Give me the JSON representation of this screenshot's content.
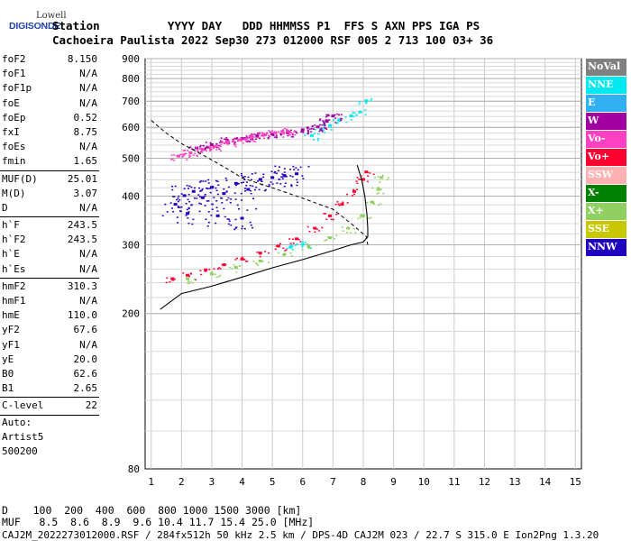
{
  "logo": {
    "line1": "Lowell",
    "line2": "DIGISONDE"
  },
  "header": {
    "row1": "Station          YYYY DAY   DDD HHMMSS P1  FFS S AXN PPS IGA PS",
    "row2": "Cachoeira Paulista 2022 Sep30 273 012000 RSF 005 2 713 100 03+ 36"
  },
  "params": {
    "group1": [
      {
        "name": "foF2",
        "value": "8.150"
      },
      {
        "name": "foF1",
        "value": "N/A"
      },
      {
        "name": "foF1p",
        "value": "N/A"
      },
      {
        "name": "foE",
        "value": "N/A"
      },
      {
        "name": "foEp",
        "value": "0.52"
      },
      {
        "name": "fxI",
        "value": "8.75"
      },
      {
        "name": "foEs",
        "value": "N/A"
      },
      {
        "name": "fmin",
        "value": "1.65"
      }
    ],
    "group2": [
      {
        "name": "MUF(D)",
        "value": "25.01"
      },
      {
        "name": "M(D)",
        "value": "3.07"
      },
      {
        "name": "D",
        "value": "N/A"
      }
    ],
    "group3": [
      {
        "name": "h`F",
        "value": "243.5"
      },
      {
        "name": "h`F2",
        "value": "243.5"
      },
      {
        "name": "h`E",
        "value": "N/A"
      },
      {
        "name": "h`Es",
        "value": "N/A"
      }
    ],
    "group4": [
      {
        "name": "hmF2",
        "value": "310.3"
      },
      {
        "name": "hmF1",
        "value": "N/A"
      },
      {
        "name": "hmE",
        "value": "110.0"
      },
      {
        "name": "yF2",
        "value": "67.6"
      },
      {
        "name": "yF1",
        "value": "N/A"
      },
      {
        "name": "yE",
        "value": "20.0"
      },
      {
        "name": "B0",
        "value": "62.6"
      },
      {
        "name": "B1",
        "value": "2.65"
      }
    ],
    "group5": [
      {
        "name": "C-level",
        "value": "22"
      }
    ],
    "footer": [
      "Auto:",
      "Artist5",
      "500200"
    ]
  },
  "legend": [
    {
      "label": "NoVal",
      "color": "#808080"
    },
    {
      "label": "NNE",
      "color": "#00e8f0"
    },
    {
      "label": "E",
      "color": "#30b0f0"
    },
    {
      "label": "W",
      "color": "#a000a0"
    },
    {
      "label": "Vo-",
      "color": "#ff40c0"
    },
    {
      "label": "Vo+",
      "color": "#ff0030"
    },
    {
      "label": "SSW",
      "color": "#ffb0b0"
    },
    {
      "label": "X-",
      "color": "#008000"
    },
    {
      "label": "X+",
      "color": "#90d060"
    },
    {
      "label": "SSE",
      "color": "#c8c800"
    },
    {
      "label": "NNW",
      "color": "#2000c0"
    }
  ],
  "bottom": {
    "row1": "D    100  200  400  600  800 1000 1500 3000 [km]",
    "row2": "MUF   8.5  8.6  8.9  9.6 10.4 11.7 15.4 25.0 [MHz]",
    "row3": "CAJ2M_2022273012000.RSF / 284fx512h 50 kHz 2.5 km / DPS-4D CAJ2M 023 / 22.7 S 315.0 E Ion2Png 1.3.20"
  },
  "chart_data": {
    "type": "scatter",
    "xlim": [
      0.8,
      15.2
    ],
    "ylim": [
      80,
      900
    ],
    "x_ticks": [
      "1",
      "2",
      "3",
      "4",
      "5",
      "6",
      "7",
      "8",
      "9",
      "10",
      "11",
      "12",
      "13",
      "14",
      "15"
    ],
    "y_ticks": [
      "200",
      "300",
      "400",
      "500",
      "600",
      "700",
      "800",
      "900"
    ],
    "y_tick_80": "80",
    "grid": true,
    "series": [
      {
        "name": "Vo+",
        "color": "#ff0030",
        "x": [
          1.7,
          2.2,
          2.8,
          3.4,
          4.0,
          4.6,
          5.2,
          5.8,
          6.4,
          6.9,
          7.3,
          7.7,
          8.0,
          8.1
        ],
        "y": [
          245,
          250,
          258,
          266,
          275,
          285,
          297,
          310,
          330,
          355,
          380,
          410,
          440,
          460
        ]
      },
      {
        "name": "X+",
        "color": "#90d060",
        "x": [
          2.2,
          3.0,
          3.8,
          4.6,
          5.4,
          6.2,
          6.9,
          7.5,
          8.0,
          8.3,
          8.5,
          8.6
        ],
        "y": [
          245,
          252,
          262,
          272,
          283,
          296,
          312,
          330,
          355,
          385,
          415,
          445
        ]
      },
      {
        "name": "NNE",
        "color": "#00e8f0",
        "x": [
          5.6,
          6.0,
          6.3,
          6.6,
          6.9,
          7.2,
          7.6,
          7.9,
          8.1
        ],
        "y": [
          295,
          300,
          570,
          590,
          605,
          625,
          640,
          655,
          700
        ]
      },
      {
        "name": "NNW",
        "color": "#2000c0",
        "x": [
          1.8,
          2.1,
          2.4,
          2.7,
          3.0,
          3.4,
          3.8,
          4.2,
          4.6,
          5.0,
          5.4,
          5.8,
          2.2,
          3.2,
          4.0
        ],
        "y": [
          380,
          400,
          410,
          395,
          420,
          405,
          430,
          415,
          440,
          445,
          450,
          455,
          360,
          355,
          350
        ]
      },
      {
        "name": "W",
        "color": "#a000a0",
        "x": [
          2.5,
          3.0,
          3.5,
          4.0,
          4.5,
          5.0,
          5.5,
          6.0,
          6.5,
          6.8,
          7.0
        ],
        "y": [
          530,
          540,
          555,
          560,
          570,
          575,
          580,
          590,
          600,
          620,
          640
        ]
      },
      {
        "name": "Vo-",
        "color": "#ff40c0",
        "x": [
          1.9,
          2.3,
          2.7,
          3.1,
          3.5,
          3.9,
          4.3,
          4.7,
          5.1,
          5.5
        ],
        "y": [
          505,
          515,
          525,
          535,
          548,
          556,
          565,
          572,
          580,
          585
        ]
      }
    ],
    "profile_curve": {
      "x": [
        1.3,
        2.0,
        3.0,
        4.0,
        5.0,
        6.0,
        7.0,
        7.6,
        8.0,
        8.15,
        8.15,
        8.12,
        8.05,
        7.95,
        7.8
      ],
      "y": [
        205,
        225,
        235,
        248,
        262,
        275,
        290,
        300,
        305,
        315,
        330,
        360,
        400,
        440,
        480
      ]
    },
    "dashed_curve": {
      "x": [
        1.0,
        1.5,
        2.0,
        2.5,
        3.0,
        3.5,
        4.0,
        5.0,
        6.0,
        7.0,
        7.6,
        8.1,
        8.15
      ],
      "y": [
        625,
        580,
        545,
        520,
        495,
        470,
        445,
        420,
        395,
        370,
        340,
        315,
        300
      ]
    }
  }
}
